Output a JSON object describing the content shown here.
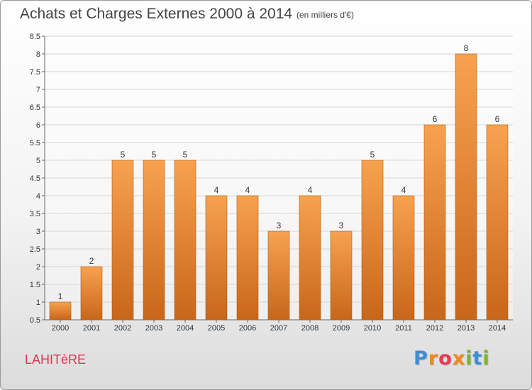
{
  "header": {
    "title": "Achats et Charges Externes 2000 à 2014",
    "unit": "(en milliers d'€)"
  },
  "footer": {
    "commune": "LAHITèRE",
    "logo_letters": [
      "P",
      "r",
      "o",
      "x",
      "i",
      "t",
      "i"
    ]
  },
  "colors": {
    "bar_top": "#f7a24f",
    "bar_bottom": "#c8661a",
    "logo_letters": [
      "#3a8fd6",
      "#f08a1c",
      "#e53b54",
      "#f08a1c",
      "#7ab52c",
      "#3a8fd6",
      "#7ab52c"
    ]
  },
  "chart_data": {
    "type": "bar",
    "categories": [
      "2000",
      "2001",
      "2002",
      "2003",
      "2004",
      "2005",
      "2006",
      "2007",
      "2008",
      "2009",
      "2010",
      "2011",
      "2012",
      "2013",
      "2014"
    ],
    "values": [
      1,
      2,
      5,
      5,
      5,
      4,
      4,
      3,
      4,
      3,
      5,
      4,
      6,
      8,
      6
    ],
    "data_labels": [
      "1",
      "2",
      "5",
      "5",
      "5",
      "4",
      "4",
      "3",
      "4",
      "3",
      "5",
      "4",
      "6",
      "8",
      "6"
    ],
    "yticks": [
      "0.5",
      "1",
      "1.5",
      "2",
      "2.5",
      "3",
      "3.5",
      "4",
      "4.5",
      "5",
      "5.5",
      "6",
      "6.5",
      "7",
      "7.5",
      "8",
      "8.5"
    ],
    "ylim": [
      0.5,
      8.5
    ],
    "grid": "horizontal"
  }
}
